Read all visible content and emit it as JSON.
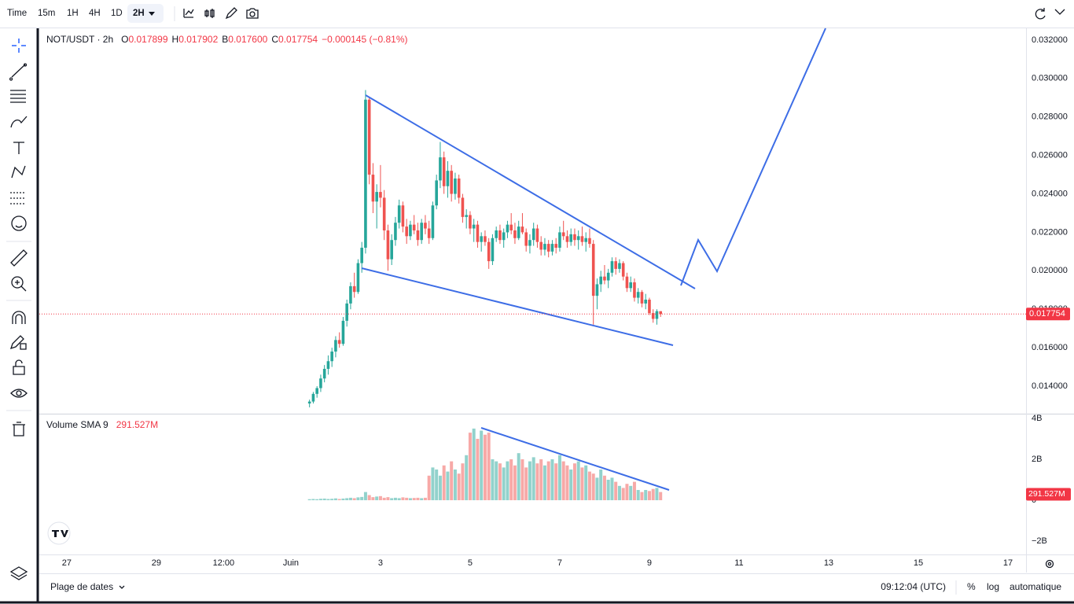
{
  "toolbar": {
    "time": "Time",
    "intervals": [
      "15m",
      "1H",
      "4H",
      "1D"
    ],
    "active": "2H"
  },
  "chart_data": {
    "type": "candlestick",
    "title": "NOT/USDT · 2h",
    "legend": [
      {
        "key": "O",
        "value": "0.017899"
      },
      {
        "key": "H",
        "value": "0.017902"
      },
      {
        "key": "B",
        "value": "0.017600"
      },
      {
        "key": "C",
        "value": "0.017754"
      }
    ],
    "change": "−0.000145 (−0.81%)",
    "x": [
      10,
      12,
      14,
      16,
      18,
      20,
      22,
      24,
      26,
      28,
      30,
      32,
      34,
      36,
      38,
      40,
      42,
      44,
      46,
      48,
      50,
      52,
      54,
      56,
      58,
      60,
      62,
      64,
      66,
      68,
      70,
      72,
      74,
      76,
      78,
      80,
      82,
      84,
      86,
      88,
      90,
      92,
      94,
      96,
      98,
      100,
      102,
      104,
      106,
      108,
      110,
      112,
      114,
      116,
      118,
      120,
      122,
      124,
      126,
      128,
      130,
      132,
      134,
      136,
      138,
      140,
      142,
      144,
      146,
      148,
      150,
      152,
      154,
      156,
      158,
      160,
      162,
      164,
      166,
      168,
      170,
      172,
      174,
      176,
      178,
      180,
      182,
      184,
      186,
      188,
      190,
      192,
      194,
      196,
      198
    ],
    "candles": [
      [
        0.0131,
        0.0133,
        0.0129,
        0.0132
      ],
      [
        0.0132,
        0.0137,
        0.0131,
        0.0136
      ],
      [
        0.0136,
        0.014,
        0.0134,
        0.0139
      ],
      [
        0.0139,
        0.0146,
        0.0137,
        0.0144
      ],
      [
        0.0144,
        0.0151,
        0.0142,
        0.0149
      ],
      [
        0.0149,
        0.0156,
        0.0146,
        0.0153
      ],
      [
        0.0153,
        0.016,
        0.015,
        0.0158
      ],
      [
        0.0158,
        0.0166,
        0.0155,
        0.0164
      ],
      [
        0.0164,
        0.0168,
        0.016,
        0.0162
      ],
      [
        0.0162,
        0.0176,
        0.0161,
        0.0174
      ],
      [
        0.0174,
        0.0185,
        0.0171,
        0.0183
      ],
      [
        0.0183,
        0.0194,
        0.018,
        0.0192
      ],
      [
        0.0192,
        0.0199,
        0.0186,
        0.0189
      ],
      [
        0.0189,
        0.0206,
        0.0188,
        0.0204
      ],
      [
        0.0204,
        0.0215,
        0.0199,
        0.0212
      ],
      [
        0.0212,
        0.0294,
        0.0209,
        0.0289
      ],
      [
        0.0289,
        0.029,
        0.0245,
        0.025
      ],
      [
        0.025,
        0.0256,
        0.023,
        0.0236
      ],
      [
        0.0236,
        0.0245,
        0.0222,
        0.0241
      ],
      [
        0.0241,
        0.0255,
        0.0233,
        0.0238
      ],
      [
        0.0238,
        0.0242,
        0.0216,
        0.0221
      ],
      [
        0.0221,
        0.0224,
        0.02,
        0.0206
      ],
      [
        0.0206,
        0.0219,
        0.0203,
        0.0216
      ],
      [
        0.0216,
        0.0228,
        0.0213,
        0.0225
      ],
      [
        0.0225,
        0.0237,
        0.0222,
        0.0234
      ],
      [
        0.0234,
        0.0236,
        0.022,
        0.0223
      ],
      [
        0.0223,
        0.0227,
        0.0214,
        0.0218
      ],
      [
        0.0218,
        0.0226,
        0.0216,
        0.0224
      ],
      [
        0.0224,
        0.0229,
        0.0219,
        0.0221
      ],
      [
        0.0221,
        0.0225,
        0.0213,
        0.0216
      ],
      [
        0.0216,
        0.0227,
        0.0214,
        0.0225
      ],
      [
        0.0225,
        0.0229,
        0.0219,
        0.0222
      ],
      [
        0.0222,
        0.0226,
        0.0214,
        0.0217
      ],
      [
        0.0217,
        0.0236,
        0.0216,
        0.0234
      ],
      [
        0.0234,
        0.025,
        0.0232,
        0.0247
      ],
      [
        0.0247,
        0.0267,
        0.0243,
        0.0259
      ],
      [
        0.0259,
        0.0262,
        0.024,
        0.0244
      ],
      [
        0.0244,
        0.0257,
        0.0238,
        0.0252
      ],
      [
        0.0252,
        0.0255,
        0.0236,
        0.024
      ],
      [
        0.024,
        0.0251,
        0.0237,
        0.0248
      ],
      [
        0.0248,
        0.025,
        0.0235,
        0.0238
      ],
      [
        0.0238,
        0.024,
        0.0225,
        0.0228
      ],
      [
        0.0228,
        0.0232,
        0.0222,
        0.0229
      ],
      [
        0.0229,
        0.0231,
        0.0219,
        0.0222
      ],
      [
        0.0222,
        0.0227,
        0.0215,
        0.0224
      ],
      [
        0.0224,
        0.0226,
        0.0212,
        0.0215
      ],
      [
        0.0215,
        0.022,
        0.021,
        0.0218
      ],
      [
        0.0218,
        0.0221,
        0.0213,
        0.0215
      ],
      [
        0.0215,
        0.0217,
        0.0201,
        0.0205
      ],
      [
        0.0205,
        0.0219,
        0.0203,
        0.0217
      ],
      [
        0.0217,
        0.0223,
        0.0215,
        0.0221
      ],
      [
        0.0221,
        0.0224,
        0.0214,
        0.0216
      ],
      [
        0.0216,
        0.0222,
        0.0212,
        0.022
      ],
      [
        0.022,
        0.0226,
        0.0217,
        0.0224
      ],
      [
        0.0224,
        0.023,
        0.0219,
        0.0221
      ],
      [
        0.0221,
        0.0225,
        0.0214,
        0.0217
      ],
      [
        0.0217,
        0.0226,
        0.0216,
        0.0223
      ],
      [
        0.0223,
        0.023,
        0.0219,
        0.022
      ],
      [
        0.022,
        0.0222,
        0.021,
        0.0213
      ],
      [
        0.0213,
        0.0219,
        0.0209,
        0.0216
      ],
      [
        0.0216,
        0.0225,
        0.0213,
        0.0222
      ],
      [
        0.0222,
        0.0224,
        0.0212,
        0.0215
      ],
      [
        0.0215,
        0.0218,
        0.0208,
        0.0211
      ],
      [
        0.0211,
        0.0217,
        0.0208,
        0.0214
      ],
      [
        0.0214,
        0.0216,
        0.0207,
        0.021
      ],
      [
        0.021,
        0.0216,
        0.0208,
        0.0214
      ],
      [
        0.0214,
        0.0217,
        0.0209,
        0.0212
      ],
      [
        0.0212,
        0.0223,
        0.021,
        0.022
      ],
      [
        0.022,
        0.0226,
        0.0216,
        0.0218
      ],
      [
        0.0218,
        0.0221,
        0.0212,
        0.0215
      ],
      [
        0.0215,
        0.0222,
        0.0213,
        0.0219
      ],
      [
        0.0219,
        0.0222,
        0.0213,
        0.0216
      ],
      [
        0.0216,
        0.0221,
        0.0211,
        0.0218
      ],
      [
        0.0218,
        0.0223,
        0.0213,
        0.0215
      ],
      [
        0.0215,
        0.022,
        0.021,
        0.0217
      ],
      [
        0.0217,
        0.0222,
        0.0212,
        0.0214
      ],
      [
        0.0214,
        0.0216,
        0.0172,
        0.0187
      ],
      [
        0.0187,
        0.0196,
        0.018,
        0.0193
      ],
      [
        0.0193,
        0.02,
        0.0189,
        0.0197
      ],
      [
        0.0197,
        0.0203,
        0.0193,
        0.0195
      ],
      [
        0.0195,
        0.0201,
        0.0191,
        0.0199
      ],
      [
        0.0199,
        0.0207,
        0.0197,
        0.0205
      ],
      [
        0.0205,
        0.0207,
        0.0198,
        0.0201
      ],
      [
        0.0201,
        0.0206,
        0.0199,
        0.0204
      ],
      [
        0.0204,
        0.0205,
        0.0195,
        0.0197
      ],
      [
        0.0197,
        0.0199,
        0.0189,
        0.0191
      ],
      [
        0.0191,
        0.0197,
        0.0189,
        0.0194
      ],
      [
        0.0194,
        0.0196,
        0.0184,
        0.0186
      ],
      [
        0.0186,
        0.0191,
        0.0183,
        0.0189
      ],
      [
        0.0189,
        0.019,
        0.0181,
        0.0183
      ],
      [
        0.0183,
        0.0188,
        0.018,
        0.0185
      ],
      [
        0.0185,
        0.0186,
        0.0177,
        0.0178
      ],
      [
        0.0178,
        0.018,
        0.0173,
        0.0175
      ],
      [
        0.0175,
        0.018,
        0.0172,
        0.0179
      ],
      [
        0.017899,
        0.017902,
        0.0176,
        0.017754
      ]
    ],
    "xlim": [
      -134.7,
      393.7
    ],
    "xticks": [
      {
        "value": -120,
        "label": "27"
      },
      {
        "value": -72,
        "label": "29"
      },
      {
        "value": -36,
        "label": "12:00"
      },
      {
        "value": 0,
        "label": "Juin"
      },
      {
        "value": 48,
        "label": "3"
      },
      {
        "value": 96,
        "label": "5"
      },
      {
        "value": 144,
        "label": "7"
      },
      {
        "value": 192,
        "label": "9"
      },
      {
        "value": 240,
        "label": "11"
      },
      {
        "value": 288,
        "label": "13"
      },
      {
        "value": 336,
        "label": "15"
      },
      {
        "value": 384,
        "label": "17"
      }
    ],
    "ylim": [
      0.01257,
      0.03261
    ],
    "yticks": [
      {
        "value": 0.014,
        "label": "0.014000"
      },
      {
        "value": 0.016,
        "label": "0.016000"
      },
      {
        "value": 0.018,
        "label": "0.018000"
      },
      {
        "value": 0.02,
        "label": "0.020000"
      },
      {
        "value": 0.022,
        "label": "0.022000"
      },
      {
        "value": 0.024,
        "label": "0.024000"
      },
      {
        "value": 0.026,
        "label": "0.026000"
      },
      {
        "value": 0.028,
        "label": "0.028000"
      },
      {
        "value": 0.03,
        "label": "0.030000"
      },
      {
        "value": 0.032,
        "label": "0.032000"
      }
    ],
    "up_color": "#26a69a",
    "down_color": "#ef5350",
    "last_price": 0.017754,
    "grid": false,
    "volume": {
      "title": "Volume SMA 9",
      "values": [
        0.05,
        0.06,
        0.05,
        0.07,
        0.08,
        0.06,
        0.07,
        0.09,
        0.06,
        0.08,
        0.1,
        0.12,
        0.1,
        0.14,
        0.16,
        0.4,
        0.25,
        0.15,
        0.18,
        0.2,
        0.12,
        0.15,
        0.1,
        0.12,
        0.1,
        0.14,
        0.12,
        0.1,
        0.11,
        0.12,
        0.1,
        0.12,
        1.2,
        1.6,
        1.5,
        1.2,
        1.7,
        1.4,
        1.9,
        1.5,
        1.3,
        1.8,
        2.2,
        3.3,
        3.5,
        3.0,
        3.4,
        3.2,
        3.3,
        2.0,
        1.9,
        1.8,
        1.6,
        1.9,
        2.0,
        1.7,
        2.3,
        2.0,
        1.6,
        1.9,
        2.1,
        1.8,
        2.0,
        1.7,
        1.9,
        2.0,
        1.8,
        2.2,
        1.9,
        1.7,
        1.5,
        1.8,
        1.9,
        1.6,
        1.7,
        1.4,
        1.3,
        1.1,
        1.5,
        1.2,
        1.0,
        1.1,
        0.9,
        0.7,
        0.6,
        0.8,
        0.7,
        0.9,
        0.5,
        0.4,
        0.5,
        0.45,
        0.55,
        0.6,
        0.4
      ],
      "ylim": [
        -2.65,
        4.19
      ],
      "yticks": [
        {
          "value": 4,
          "label": "4B"
        },
        {
          "value": 2,
          "label": "2B"
        },
        0,
        {
          "value": -2,
          "label": "−2B"
        }
      ],
      "sma": {
        "value": 0.291527,
        "label": "291.527M"
      }
    }
  },
  "footer": {
    "range": "Plage de dates",
    "clock": "09:12:04 (UTC)",
    "percent": "%",
    "log": "log",
    "auto": "automatique"
  }
}
